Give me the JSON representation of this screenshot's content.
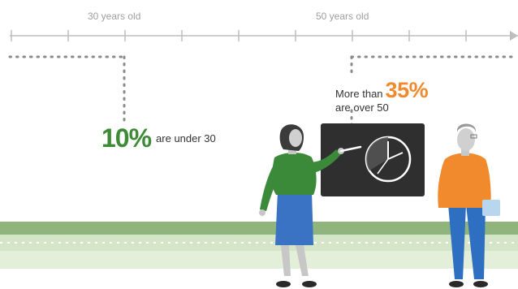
{
  "timeline": {
    "label_30": "30 years old",
    "label_50": "50 years old"
  },
  "stats": {
    "under30": {
      "value": "10%",
      "text": "are under 30"
    },
    "over50": {
      "prefix": "More than",
      "value": "35%",
      "text": "are over 50"
    }
  },
  "colors": {
    "green": "#3d8b37",
    "orange": "#f08a2d",
    "axis": "#bdbdbd",
    "ground": "#8fb57d",
    "blackboard": "#2f2f2f",
    "shirt_blue": "#2f6fc2"
  }
}
